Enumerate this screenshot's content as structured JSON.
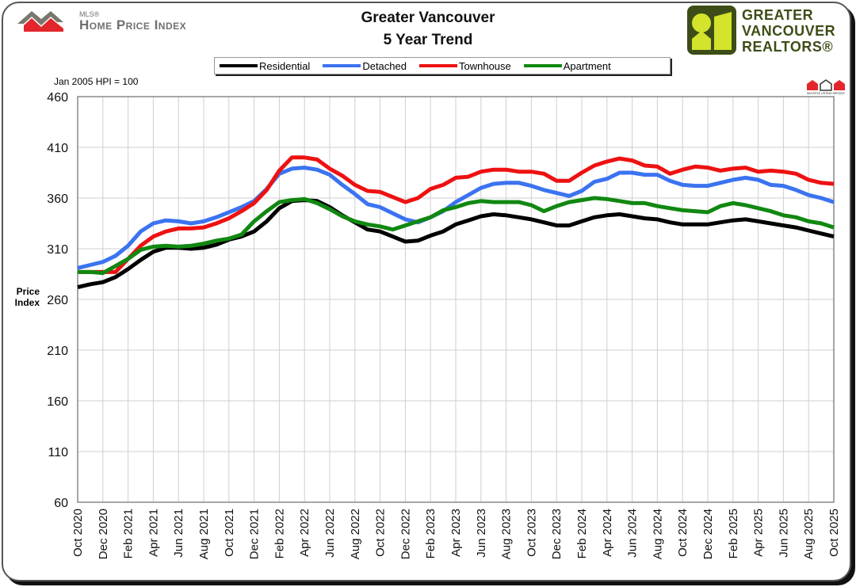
{
  "header": {
    "logo_left_small": "MLS®",
    "logo_left_main": "Home Price Index",
    "title_line1": "Greater Vancouver",
    "title_line2": "5 Year Trend",
    "logo_right": [
      "GREATER",
      "VANCOUVER",
      "REALTORS®"
    ],
    "mls_badge": "MULTIPLE LISTING SERVICE",
    "note": "Jan 2005 HPI = 100"
  },
  "chart_data": {
    "type": "line",
    "title": "Greater Vancouver 5 Year Trend",
    "ylabel": "Price Index",
    "xlabel": "",
    "ylim": [
      60,
      460
    ],
    "yticks": [
      60,
      110,
      160,
      210,
      260,
      310,
      360,
      410,
      460
    ],
    "grid": true,
    "legend": "top",
    "x_start": "Oct 2020",
    "x_end": "Oct 2025",
    "xtick_labels": [
      "Oct 2020",
      "Dec 2020",
      "Feb 2021",
      "Apr 2021",
      "Jun 2021",
      "Aug 2021",
      "Oct 2021",
      "Dec 2021",
      "Feb 2022",
      "Apr 2022",
      "Jun 2022",
      "Aug 2022",
      "Oct 2022",
      "Dec 2022",
      "Feb 2023",
      "Apr 2023",
      "Jun 2023",
      "Aug 2023",
      "Oct 2023",
      "Dec 2023",
      "Feb 2024",
      "Apr 2024",
      "Jun 2024",
      "Aug 2024",
      "Oct 2024",
      "Dec 2024",
      "Feb 2025",
      "Apr 2025",
      "Jun 2025",
      "Aug 2025",
      "Oct 2025"
    ],
    "series": [
      {
        "name": "Residential",
        "color": "#000000",
        "values": [
          272,
          275,
          277,
          282,
          290,
          299,
          307,
          311,
          311,
          310,
          311,
          314,
          319,
          322,
          327,
          337,
          350,
          357,
          358,
          357,
          351,
          343,
          336,
          329,
          327,
          322,
          317,
          318,
          323,
          327,
          334,
          338,
          342,
          344,
          343,
          341,
          339,
          336,
          333,
          333,
          337,
          341,
          343,
          344,
          342,
          340,
          339,
          336,
          334,
          334,
          334,
          336,
          338,
          339,
          337,
          335,
          333,
          331,
          328,
          325,
          322
        ]
      },
      {
        "name": "Detached",
        "color": "#3b73f0",
        "values": [
          291,
          294,
          297,
          303,
          313,
          327,
          335,
          338,
          337,
          335,
          337,
          341,
          346,
          351,
          357,
          369,
          384,
          389,
          390,
          388,
          383,
          373,
          364,
          354,
          351,
          345,
          339,
          336,
          341,
          347,
          356,
          363,
          370,
          374,
          375,
          375,
          372,
          368,
          365,
          362,
          367,
          376,
          379,
          385,
          385,
          383,
          383,
          377,
          373,
          372,
          372,
          375,
          378,
          380,
          378,
          373,
          372,
          368,
          363,
          360,
          356
        ]
      },
      {
        "name": "Townhouse",
        "color": "#ee1111",
        "values": [
          287,
          287,
          287,
          287,
          300,
          313,
          322,
          327,
          330,
          330,
          331,
          335,
          340,
          347,
          355,
          368,
          387,
          400,
          400,
          398,
          389,
          382,
          373,
          367,
          366,
          361,
          356,
          360,
          369,
          373,
          380,
          381,
          386,
          388,
          388,
          386,
          386,
          384,
          377,
          377,
          385,
          392,
          396,
          399,
          397,
          392,
          391,
          384,
          388,
          391,
          390,
          387,
          389,
          390,
          386,
          387,
          386,
          384,
          378,
          375,
          374
        ]
      },
      {
        "name": "Apartment",
        "color": "#118811",
        "values": [
          287,
          287,
          286,
          293,
          300,
          309,
          312,
          313,
          312,
          313,
          315,
          318,
          320,
          324,
          337,
          347,
          356,
          358,
          359,
          355,
          349,
          342,
          337,
          334,
          332,
          329,
          333,
          337,
          341,
          348,
          351,
          355,
          357,
          356,
          356,
          356,
          353,
          347,
          352,
          356,
          358,
          360,
          359,
          357,
          355,
          355,
          352,
          350,
          348,
          347,
          346,
          352,
          355,
          353,
          350,
          347,
          343,
          341,
          337,
          335,
          331
        ]
      }
    ]
  }
}
